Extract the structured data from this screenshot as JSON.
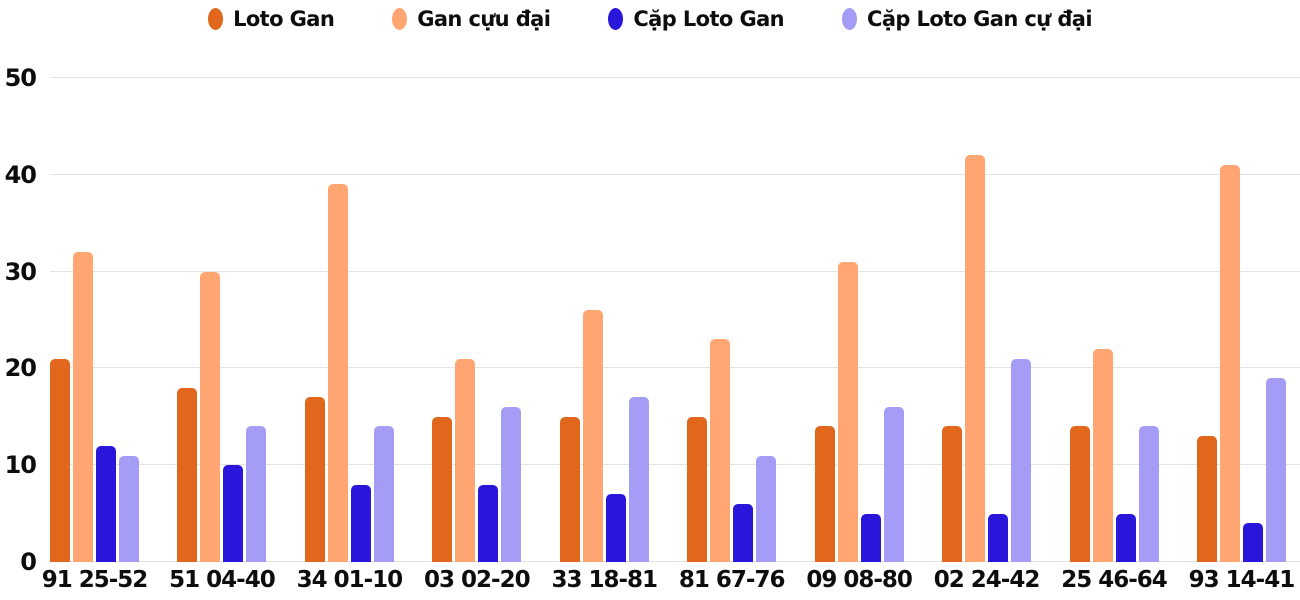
{
  "chart_data": {
    "type": "bar",
    "title": "",
    "xlabel": "",
    "ylabel": "",
    "ylim": [
      0,
      50
    ],
    "yticks": [
      0,
      10,
      20,
      30,
      40,
      50
    ],
    "grid": true,
    "legend_position": "top",
    "categories": [
      "91 25-52",
      "51 04-40",
      "34 01-10",
      "03 02-20",
      "33 18-81",
      "81 67-76",
      "09 08-80",
      "02 24-42",
      "25 46-64",
      "93 14-41"
    ],
    "series": [
      {
        "name": "Loto Gan",
        "color": "#E0671C",
        "values": [
          21,
          18,
          17,
          15,
          15,
          15,
          14,
          14,
          14,
          13
        ]
      },
      {
        "name": "Gan cựu đại",
        "color": "#FFA672",
        "values": [
          32,
          30,
          39,
          21,
          26,
          23,
          31,
          42,
          22,
          41
        ]
      },
      {
        "name": "Cặp Loto Gan",
        "color": "#2A15DB",
        "values": [
          12,
          10,
          8,
          8,
          7,
          6,
          5,
          5,
          5,
          4
        ]
      },
      {
        "name": "Cặp Loto Gan cự đại",
        "color": "#A49CF5",
        "values": [
          11,
          14,
          14,
          16,
          17,
          11,
          16,
          21,
          14,
          19
        ]
      }
    ],
    "colors": {
      "gridline": "#e3e3e3",
      "text": "#0d0d0d",
      "background": "#ffffff"
    }
  }
}
